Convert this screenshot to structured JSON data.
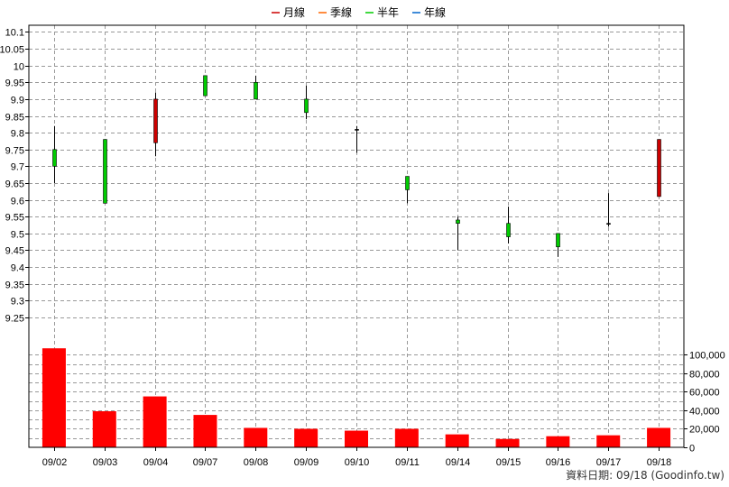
{
  "chart_data": {
    "type": "candlestick",
    "legend": [
      {
        "label": "月線",
        "color": "#cc0000"
      },
      {
        "label": "季線",
        "color": "#ff6600"
      },
      {
        "label": "半年",
        "color": "#00cc00"
      },
      {
        "label": "年線",
        "color": "#0066cc"
      }
    ],
    "legend_position": "top-center",
    "grid": true,
    "categories": [
      "09/02",
      "09/03",
      "09/04",
      "09/07",
      "09/08",
      "09/09",
      "09/10",
      "09/11",
      "09/14",
      "09/15",
      "09/16",
      "09/17",
      "09/18"
    ],
    "price_axis": {
      "ylim": [
        9.18,
        10.12
      ],
      "ticks": [
        "10.1",
        "10.05",
        "10",
        "9.95",
        "9.9",
        "9.85",
        "9.8",
        "9.75",
        "9.7",
        "9.65",
        "9.6",
        "9.55",
        "9.5",
        "9.45",
        "9.4",
        "9.35",
        "9.3",
        "9.25"
      ]
    },
    "candles": [
      {
        "open": 9.75,
        "high": 9.82,
        "low": 9.65,
        "close": 9.7
      },
      {
        "open": 9.78,
        "high": 9.78,
        "low": 9.59,
        "close": 9.59
      },
      {
        "open": 9.77,
        "high": 9.92,
        "low": 9.73,
        "close": 9.9
      },
      {
        "open": 9.97,
        "high": 9.97,
        "low": 9.91,
        "close": 9.91
      },
      {
        "open": 9.95,
        "high": 9.97,
        "low": 9.9,
        "close": 9.9
      },
      {
        "open": 9.9,
        "high": 9.94,
        "low": 9.84,
        "close": 9.86
      },
      {
        "open": 9.81,
        "high": 9.82,
        "low": 9.74,
        "close": 9.81
      },
      {
        "open": 9.67,
        "high": 9.67,
        "low": 9.59,
        "close": 9.63
      },
      {
        "open": 9.54,
        "high": 9.55,
        "low": 9.45,
        "close": 9.53
      },
      {
        "open": 9.53,
        "high": 9.58,
        "low": 9.47,
        "close": 9.49
      },
      {
        "open": 9.5,
        "high": 9.5,
        "low": 9.43,
        "close": 9.46
      },
      {
        "open": 9.53,
        "high": 9.62,
        "low": 9.52,
        "close": 9.53
      },
      {
        "open": 9.61,
        "high": 9.78,
        "low": 9.61,
        "close": 9.78
      }
    ],
    "volume_axis": {
      "ylim": [
        0,
        115000
      ],
      "ticks": [
        {
          "value": 100000,
          "label": "100,000"
        },
        {
          "value": 80000,
          "label": "80,000"
        },
        {
          "value": 60000,
          "label": "60,000"
        },
        {
          "value": 40000,
          "label": "40,000"
        },
        {
          "value": 20000,
          "label": "20,000"
        },
        {
          "value": 0,
          "label": "0"
        }
      ]
    },
    "volume": [
      107000,
      39000,
      55000,
      35000,
      21000,
      20000,
      18000,
      20000,
      14000,
      9000,
      12000,
      13000,
      21000
    ],
    "colors": {
      "up": "#cc0000",
      "down": "#00cc00",
      "flat": "#000000",
      "volume": "#ff0000"
    }
  },
  "footer": "資料日期: 09/18  (Goodinfo.tw)"
}
